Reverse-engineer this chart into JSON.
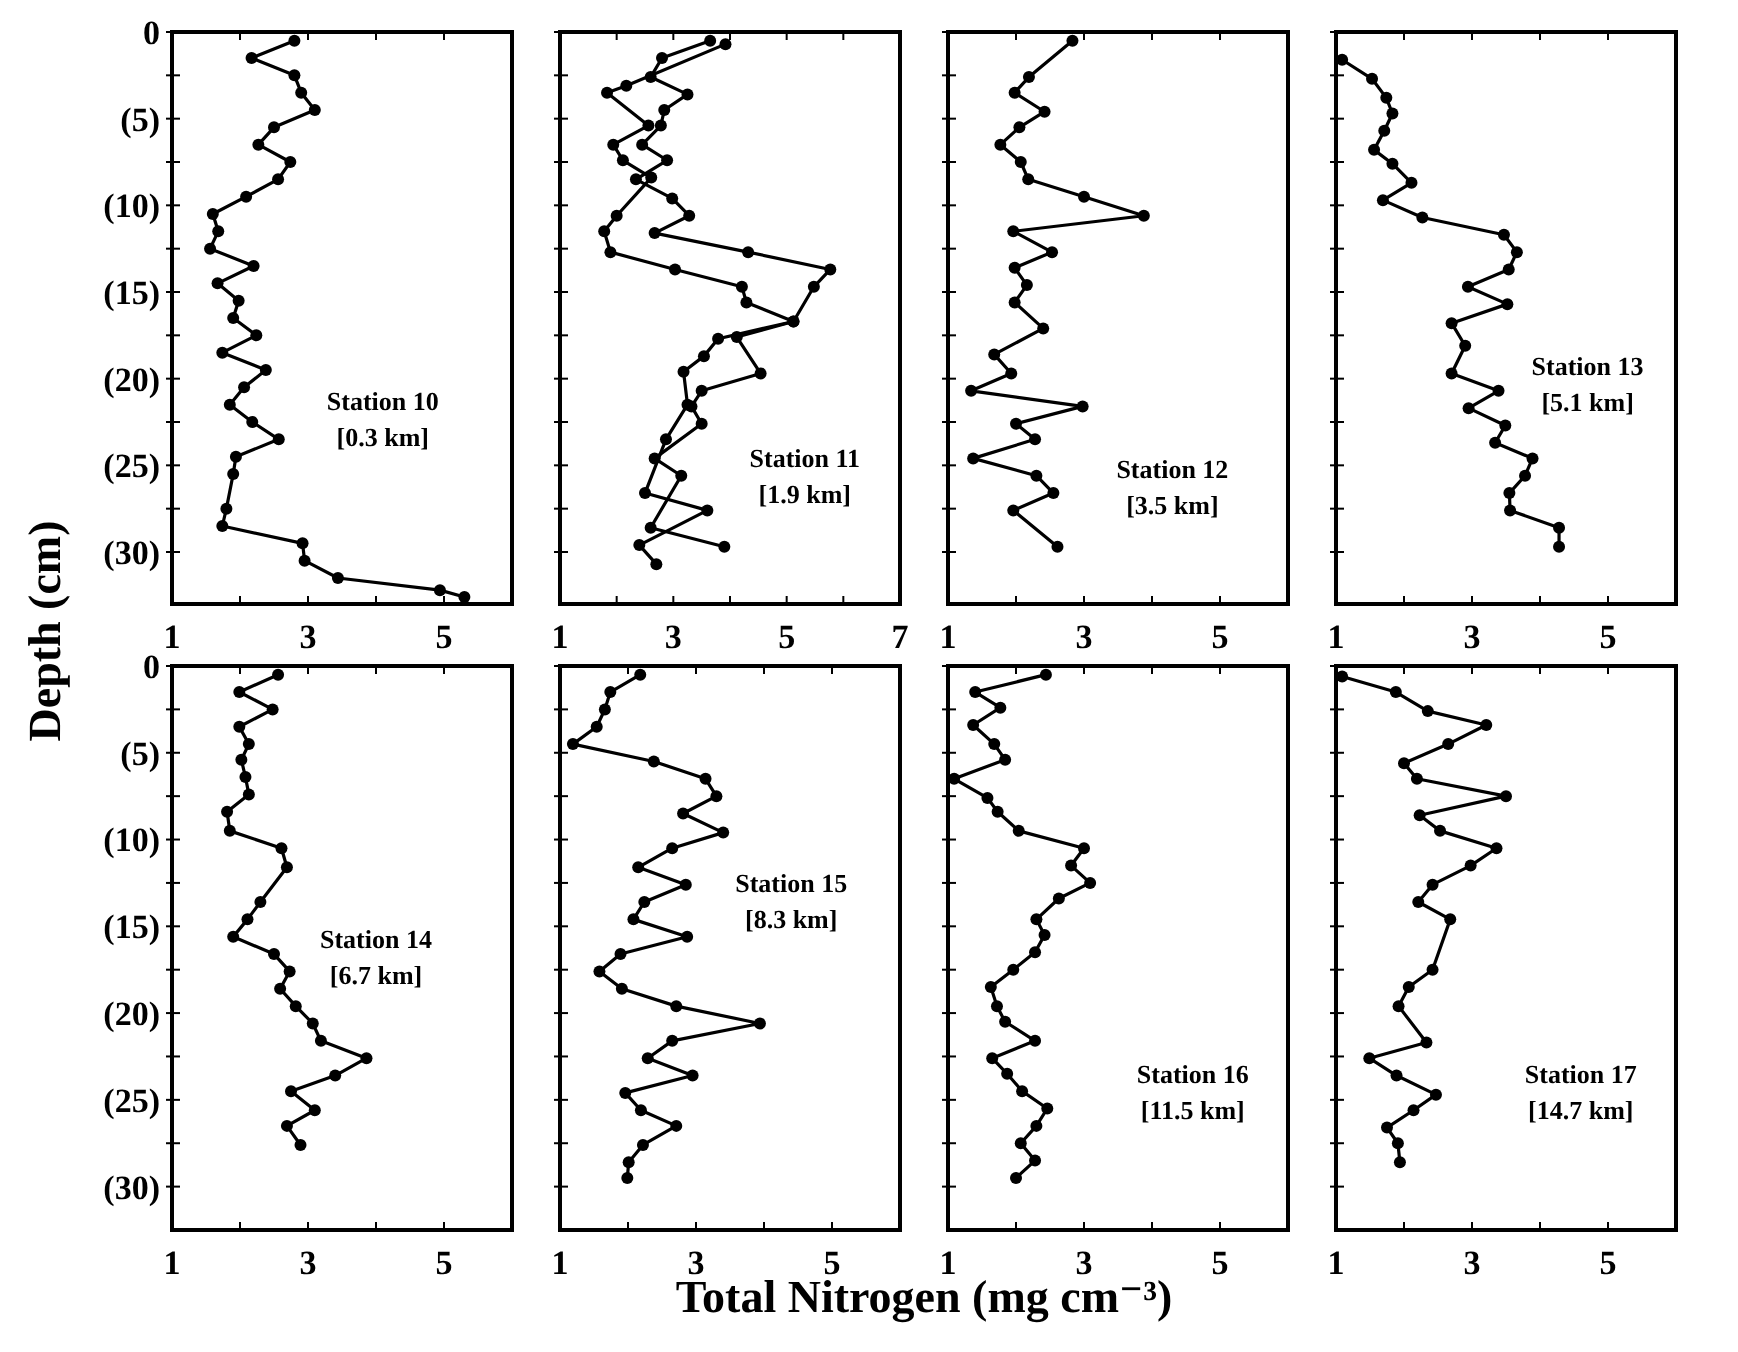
{
  "chart_data": [
    {
      "type": "line",
      "ylabel": "Depth (cm)",
      "xlim": [
        1,
        6
      ],
      "ylim": [
        33,
        0
      ],
      "xticks": [
        1,
        {
          "value": 2,
          "label": null
        },
        3,
        {
          "value": 4,
          "label": null
        },
        5
      ],
      "yticks": [
        0,
        {
          "value": 2.5,
          "label": null
        },
        {
          "value": 5,
          "label": "(5)"
        },
        {
          "value": 7.5,
          "label": null
        },
        {
          "value": 10,
          "label": "(10)"
        },
        {
          "value": 12.5,
          "label": null
        },
        {
          "value": 15,
          "label": "(15)"
        },
        {
          "value": 17.5,
          "label": null
        },
        {
          "value": 20,
          "label": "(20)"
        },
        {
          "value": 22.5,
          "label": null
        },
        {
          "value": 25,
          "label": "(25)"
        },
        {
          "value": 27.5,
          "label": null
        },
        {
          "value": 30,
          "label": "(30)"
        }
      ],
      "marker": "circle",
      "line_style": "solid",
      "annotations": [
        "Station 10",
        "[0.3 km]"
      ],
      "series": [
        {
          "color": "#000000",
          "x": [
            2.8,
            2.17,
            2.8,
            2.9,
            3.1,
            2.5,
            2.27,
            2.74,
            2.56,
            2.09,
            1.6,
            1.68,
            1.56,
            2.2,
            1.67,
            1.98,
            1.9,
            2.24,
            1.74,
            2.38,
            2.06,
            1.85,
            2.18,
            2.57,
            1.94,
            1.9,
            1.8,
            1.74,
            2.92,
            2.95,
            3.44,
            4.94,
            5.3
          ],
          "values": [
            0.5,
            1.5,
            2.5,
            3.5,
            4.5,
            5.5,
            6.5,
            7.5,
            8.5,
            9.5,
            10.5,
            11.5,
            12.5,
            13.5,
            14.5,
            15.5,
            16.5,
            17.5,
            18.5,
            19.5,
            20.5,
            21.5,
            22.5,
            23.5,
            24.5,
            25.5,
            27.5,
            28.5,
            29.5,
            30.5,
            31.5,
            32.2,
            32.6
          ]
        }
      ]
    },
    {
      "type": "line",
      "xlim": [
        1,
        7
      ],
      "ylim": [
        33,
        0
      ],
      "tick_labels": "x",
      "xticks": [
        1,
        {
          "value": 2,
          "label": null
        },
        3,
        {
          "value": 4,
          "label": null
        },
        5,
        {
          "value": 6,
          "label": null
        },
        7
      ],
      "yticks": [
        {
          "value": 0,
          "label": null
        },
        {
          "value": 2.5,
          "label": null
        },
        {
          "value": 5,
          "label": null
        },
        {
          "value": 7.5,
          "label": null
        },
        {
          "value": 10,
          "label": null
        },
        {
          "value": 12.5,
          "label": null
        },
        {
          "value": 15,
          "label": null
        },
        {
          "value": 17.5,
          "label": null
        },
        {
          "value": 20,
          "label": null
        },
        {
          "value": 22.5,
          "label": null
        },
        {
          "value": 25,
          "label": null
        },
        {
          "value": 27.5,
          "label": null
        },
        {
          "value": 30,
          "label": null
        }
      ],
      "marker": "circle",
      "line_style": "solid",
      "annotations": [
        "Station 11",
        "[1.9 km]"
      ],
      "series": [
        {
          "color": "#000000",
          "x": [
            3.65,
            2.8,
            2.6,
            3.25,
            2.84,
            2.78,
            2.45,
            2.89,
            2.34,
            2.98,
            3.28,
            2.67,
            4.32,
            5.77,
            5.48,
            5.12,
            4.12,
            4.54,
            3.5,
            3.32,
            3.5,
            2.67,
            3.14,
            2.6,
            3.9
          ],
          "values": [
            0.5,
            1.5,
            2.6,
            3.6,
            4.5,
            5.4,
            6.5,
            7.4,
            8.5,
            9.6,
            10.6,
            11.6,
            12.7,
            13.7,
            14.7,
            16.7,
            17.6,
            19.7,
            20.7,
            21.6,
            22.6,
            24.6,
            25.6,
            28.6,
            29.7
          ]
        },
        {
          "color": "#000000",
          "x": [
            3.92,
            2.17,
            1.83,
            2.56,
            1.94,
            2.11,
            2.61,
            2.0,
            1.78,
            1.89,
            3.03,
            4.21,
            4.29,
            5.12,
            3.79,
            3.54,
            3.18,
            3.25,
            2.87,
            2.5,
            3.6,
            2.4,
            2.7
          ],
          "values": [
            0.7,
            3.1,
            3.5,
            5.4,
            6.5,
            7.4,
            8.4,
            10.6,
            11.5,
            12.7,
            13.7,
            14.7,
            15.6,
            16.7,
            17.7,
            18.7,
            19.6,
            21.5,
            23.5,
            26.6,
            27.6,
            29.6,
            30.7
          ]
        }
      ]
    },
    {
      "type": "line",
      "xlim": [
        1,
        6
      ],
      "ylim": [
        33,
        0
      ],
      "tick_labels": "x",
      "xticks": [
        1,
        {
          "value": 2,
          "label": null
        },
        3,
        {
          "value": 4,
          "label": null
        },
        5
      ],
      "yticks": [
        {
          "value": 0,
          "label": null
        },
        {
          "value": 2.5,
          "label": null
        },
        {
          "value": 5,
          "label": null
        },
        {
          "value": 7.5,
          "label": null
        },
        {
          "value": 10,
          "label": null
        },
        {
          "value": 12.5,
          "label": null
        },
        {
          "value": 15,
          "label": null
        },
        {
          "value": 17.5,
          "label": null
        },
        {
          "value": 20,
          "label": null
        },
        {
          "value": 22.5,
          "label": null
        },
        {
          "value": 25,
          "label": null
        },
        {
          "value": 27.5,
          "label": null
        },
        {
          "value": 30,
          "label": null
        }
      ],
      "marker": "circle",
      "line_style": "solid",
      "annotations": [
        "Station 12",
        "[3.5 km]"
      ],
      "series": [
        {
          "color": "#000000",
          "x": [
            2.83,
            2.19,
            1.98,
            2.42,
            2.05,
            1.77,
            2.07,
            2.18,
            3.0,
            3.88,
            1.96,
            2.53,
            1.98,
            2.16,
            1.98,
            2.4,
            1.68,
            1.93,
            1.34,
            2.98,
            2.0,
            2.28,
            1.37,
            2.3,
            2.55,
            1.96,
            2.61
          ],
          "values": [
            0.5,
            2.6,
            3.5,
            4.6,
            5.5,
            6.5,
            7.5,
            8.5,
            9.5,
            10.6,
            11.5,
            12.7,
            13.6,
            14.6,
            15.6,
            17.1,
            18.6,
            19.7,
            20.7,
            21.6,
            22.6,
            23.5,
            24.6,
            25.6,
            26.6,
            27.6,
            29.7
          ]
        }
      ]
    },
    {
      "type": "line",
      "xlim": [
        1,
        6
      ],
      "ylim": [
        33,
        0
      ],
      "tick_labels": "x",
      "xticks": [
        1,
        {
          "value": 2,
          "label": null
        },
        3,
        {
          "value": 4,
          "label": null
        },
        5
      ],
      "yticks": [
        {
          "value": 0,
          "label": null
        },
        {
          "value": 2.5,
          "label": null
        },
        {
          "value": 5,
          "label": null
        },
        {
          "value": 7.5,
          "label": null
        },
        {
          "value": 10,
          "label": null
        },
        {
          "value": 12.5,
          "label": null
        },
        {
          "value": 15,
          "label": null
        },
        {
          "value": 17.5,
          "label": null
        },
        {
          "value": 20,
          "label": null
        },
        {
          "value": 22.5,
          "label": null
        },
        {
          "value": 25,
          "label": null
        },
        {
          "value": 27.5,
          "label": null
        },
        {
          "value": 30,
          "label": null
        }
      ],
      "marker": "circle",
      "line_style": "solid",
      "annotations": [
        "Station 13",
        "[5.1 km]"
      ],
      "series": [
        {
          "color": "#000000",
          "x": [
            1.09,
            1.53,
            1.74,
            1.83,
            1.71,
            1.56,
            1.83,
            2.11,
            1.69,
            2.27,
            3.47,
            3.66,
            3.54,
            2.94,
            3.52,
            2.7,
            2.9,
            2.7,
            3.39,
            2.95,
            3.49,
            3.34,
            3.89,
            3.78,
            3.55,
            3.56,
            4.28,
            4.28
          ],
          "values": [
            1.6,
            2.7,
            3.8,
            4.7,
            5.7,
            6.8,
            7.6,
            8.7,
            9.7,
            10.7,
            11.7,
            12.7,
            13.7,
            14.7,
            15.7,
            16.8,
            18.1,
            19.7,
            20.7,
            21.7,
            22.7,
            23.7,
            24.6,
            25.6,
            26.6,
            27.6,
            28.6,
            29.7
          ]
        }
      ]
    },
    {
      "type": "line",
      "xlim": [
        1,
        6
      ],
      "ylim": [
        32.5,
        0
      ],
      "xticks": [
        1,
        {
          "value": 2,
          "label": null
        },
        3,
        {
          "value": 4,
          "label": null
        },
        5
      ],
      "yticks": [
        0,
        {
          "value": 2.5,
          "label": null
        },
        {
          "value": 5,
          "label": "(5)"
        },
        {
          "value": 7.5,
          "label": null
        },
        {
          "value": 10,
          "label": "(10)"
        },
        {
          "value": 12.5,
          "label": null
        },
        {
          "value": 15,
          "label": "(15)"
        },
        {
          "value": 17.5,
          "label": null
        },
        {
          "value": 20,
          "label": "(20)"
        },
        {
          "value": 22.5,
          "label": null
        },
        {
          "value": 25,
          "label": "(25)"
        },
        {
          "value": 27.5,
          "label": null
        },
        {
          "value": 30,
          "label": "(30)"
        }
      ],
      "marker": "circle",
      "line_style": "solid",
      "annotations": [
        "Station 14",
        "[6.7 km]"
      ],
      "series": [
        {
          "color": "#000000",
          "x": [
            2.56,
            1.99,
            2.48,
            1.99,
            2.13,
            2.02,
            2.08,
            2.13,
            1.81,
            1.85,
            2.61,
            2.69,
            2.3,
            2.11,
            1.9,
            2.5,
            2.73,
            2.59,
            2.82,
            3.07,
            3.19,
            3.86,
            3.4,
            2.75,
            3.1,
            2.69,
            2.89
          ],
          "values": [
            0.5,
            1.5,
            2.5,
            3.5,
            4.5,
            5.4,
            6.4,
            7.4,
            8.4,
            9.5,
            10.5,
            11.6,
            13.6,
            14.6,
            15.6,
            16.6,
            17.6,
            18.6,
            19.6,
            20.6,
            21.6,
            22.6,
            23.6,
            24.5,
            25.6,
            26.5,
            27.6
          ]
        }
      ]
    },
    {
      "type": "line",
      "xlabel": "Total Nitrogen (mg cm⁻³)",
      "xlim": [
        1,
        6
      ],
      "ylim": [
        32.5,
        0
      ],
      "tick_labels": "x",
      "xticks": [
        1,
        {
          "value": 2,
          "label": null
        },
        3,
        {
          "value": 4,
          "label": null
        },
        5
      ],
      "yticks": [
        {
          "value": 0,
          "label": null
        },
        {
          "value": 2.5,
          "label": null
        },
        {
          "value": 5,
          "label": null
        },
        {
          "value": 7.5,
          "label": null
        },
        {
          "value": 10,
          "label": null
        },
        {
          "value": 12.5,
          "label": null
        },
        {
          "value": 15,
          "label": null
        },
        {
          "value": 17.5,
          "label": null
        },
        {
          "value": 20,
          "label": null
        },
        {
          "value": 22.5,
          "label": null
        },
        {
          "value": 25,
          "label": null
        },
        {
          "value": 27.5,
          "label": null
        },
        {
          "value": 30,
          "label": null
        }
      ],
      "marker": "circle",
      "line_style": "solid",
      "annotations": [
        "Station 15",
        "[8.3 km]"
      ],
      "series": [
        {
          "color": "#000000",
          "x": [
            2.18,
            1.74,
            1.66,
            1.54,
            1.19,
            2.38,
            3.14,
            3.3,
            2.81,
            3.4,
            2.65,
            2.15,
            2.85,
            2.24,
            2.08,
            2.87,
            1.89,
            1.58,
            1.91,
            2.71,
            3.94,
            2.65,
            2.29,
            2.95,
            1.96,
            2.19,
            2.71,
            2.22,
            2.01,
            1.99
          ],
          "values": [
            0.5,
            1.5,
            2.5,
            3.5,
            4.5,
            5.5,
            6.5,
            7.5,
            8.5,
            9.6,
            10.5,
            11.6,
            12.6,
            13.6,
            14.6,
            15.6,
            16.6,
            17.6,
            18.6,
            19.6,
            20.6,
            21.6,
            22.6,
            23.6,
            24.6,
            25.6,
            26.5,
            27.6,
            28.6,
            29.5
          ]
        }
      ]
    },
    {
      "type": "line",
      "xlim": [
        1,
        6
      ],
      "ylim": [
        32.5,
        0
      ],
      "tick_labels": "x",
      "xticks": [
        1,
        {
          "value": 2,
          "label": null
        },
        3,
        {
          "value": 4,
          "label": null
        },
        5
      ],
      "yticks": [
        {
          "value": 0,
          "label": null
        },
        {
          "value": 2.5,
          "label": null
        },
        {
          "value": 5,
          "label": null
        },
        {
          "value": 7.5,
          "label": null
        },
        {
          "value": 10,
          "label": null
        },
        {
          "value": 12.5,
          "label": null
        },
        {
          "value": 15,
          "label": null
        },
        {
          "value": 17.5,
          "label": null
        },
        {
          "value": 20,
          "label": null
        },
        {
          "value": 22.5,
          "label": null
        },
        {
          "value": 25,
          "label": null
        },
        {
          "value": 27.5,
          "label": null
        },
        {
          "value": 30,
          "label": null
        }
      ],
      "marker": "circle",
      "line_style": "solid",
      "annotations": [
        "Station 16",
        "[11.5 km]"
      ],
      "series": [
        {
          "color": "#000000",
          "x": [
            2.44,
            1.4,
            1.77,
            1.37,
            1.68,
            1.84,
            1.09,
            1.58,
            1.73,
            2.04,
            3.0,
            2.81,
            3.09,
            2.63,
            2.3,
            2.42,
            2.28,
            1.96,
            1.63,
            1.72,
            1.84,
            2.28,
            1.65,
            1.87,
            2.09,
            2.46,
            2.3,
            2.07,
            2.28,
            2.0
          ],
          "values": [
            0.5,
            1.5,
            2.4,
            3.4,
            4.5,
            5.4,
            6.5,
            7.6,
            8.4,
            9.5,
            10.5,
            11.5,
            12.5,
            13.4,
            14.6,
            15.5,
            16.5,
            17.5,
            18.5,
            19.6,
            20.5,
            21.6,
            22.6,
            23.5,
            24.5,
            25.5,
            26.5,
            27.5,
            28.5,
            29.5
          ]
        }
      ]
    },
    {
      "type": "line",
      "xlim": [
        1,
        6
      ],
      "ylim": [
        32.5,
        0
      ],
      "tick_labels": "x",
      "xticks": [
        1,
        {
          "value": 2,
          "label": null
        },
        3,
        {
          "value": 4,
          "label": null
        },
        5
      ],
      "yticks": [
        {
          "value": 0,
          "label": null
        },
        {
          "value": 2.5,
          "label": null
        },
        {
          "value": 5,
          "label": null
        },
        {
          "value": 7.5,
          "label": null
        },
        {
          "value": 10,
          "label": null
        },
        {
          "value": 12.5,
          "label": null
        },
        {
          "value": 15,
          "label": null
        },
        {
          "value": 17.5,
          "label": null
        },
        {
          "value": 20,
          "label": null
        },
        {
          "value": 22.5,
          "label": null
        },
        {
          "value": 25,
          "label": null
        },
        {
          "value": 27.5,
          "label": null
        },
        {
          "value": 30,
          "label": null
        }
      ],
      "marker": "circle",
      "line_style": "solid",
      "annotations": [
        "Station 17",
        "[14.7 km]"
      ],
      "series": [
        {
          "color": "#000000",
          "x": [
            1.09,
            1.88,
            2.35,
            3.21,
            2.65,
            2.0,
            2.19,
            3.5,
            2.23,
            2.53,
            3.36,
            2.98,
            2.42,
            2.21,
            2.68,
            2.42,
            2.07,
            1.92,
            2.33,
            1.49,
            1.89,
            2.47,
            2.14,
            1.75,
            1.91,
            1.94
          ],
          "values": [
            0.6,
            1.5,
            2.6,
            3.4,
            4.5,
            5.6,
            6.5,
            7.5,
            8.6,
            9.5,
            10.5,
            11.5,
            12.6,
            13.6,
            14.6,
            17.5,
            18.5,
            19.6,
            21.7,
            22.6,
            23.6,
            24.7,
            25.6,
            26.6,
            27.5,
            28.6
          ]
        }
      ]
    }
  ]
}
